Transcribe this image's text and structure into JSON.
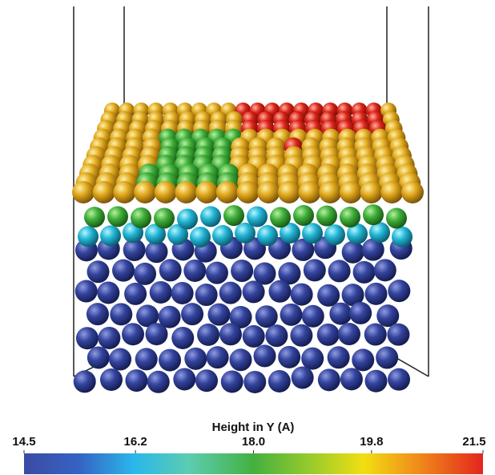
{
  "colorbar": {
    "title": "Height in Y (A)",
    "ticks": [
      {
        "value": 14.5,
        "label": "14.5"
      },
      {
        "value": 16.2,
        "label": "16.2"
      },
      {
        "value": 18.0,
        "label": "18.0"
      },
      {
        "value": 19.8,
        "label": "19.8"
      },
      {
        "value": 21.5,
        "label": "21.5"
      }
    ],
    "lim": [
      14.5,
      21.5
    ]
  }
}
